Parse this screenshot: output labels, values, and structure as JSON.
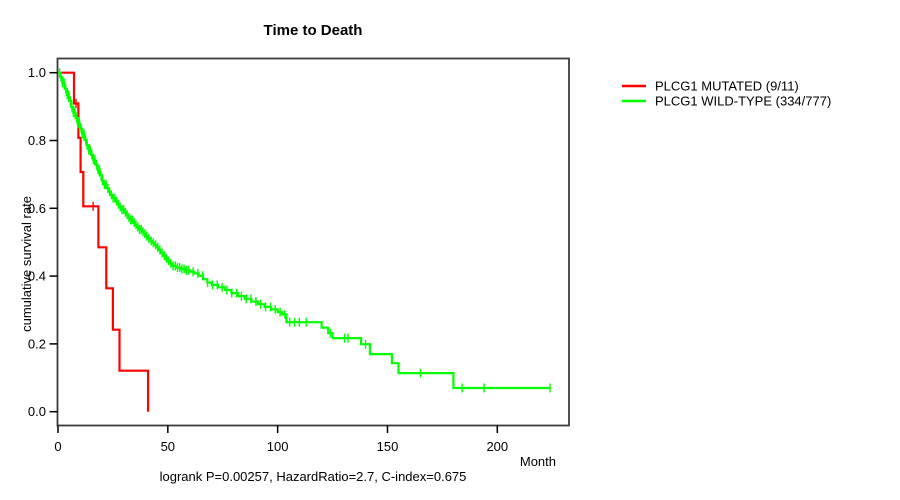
{
  "chart_data": {
    "type": "line",
    "variant": "kaplan-meier-step",
    "title": "Time to Death",
    "xlabel": "Month",
    "ylabel": "cumulative survival rate",
    "caption": "logrank P=0.00257, HazardRatio=2.7, C-index=0.675",
    "grid": false,
    "legend_position": "right-outside",
    "xlim": [
      0,
      232
    ],
    "ylim": [
      0.0,
      1.0
    ],
    "x_ticks": [
      0,
      50,
      100,
      150,
      200
    ],
    "x_tick_labels": [
      "0",
      "50",
      "100",
      "150",
      "200"
    ],
    "y_ticks": [
      1.0,
      0.8,
      0.6,
      0.4,
      0.2,
      0.0
    ],
    "y_tick_labels": [
      "1.0",
      "0.8",
      "0.6",
      "0.4",
      "0.2",
      "0.0"
    ],
    "axis_color": "#000000",
    "box_color": "#3c3c3c",
    "text_color": "#000000",
    "series": [
      {
        "name": "PLCG1 MUTATED (9/11)",
        "color": "#ff0000",
        "n_total": 11,
        "n_events": 9,
        "steps": [
          [
            0,
            1.0
          ],
          [
            7.3,
            0.909
          ],
          [
            9.3,
            0.808
          ],
          [
            10.3,
            0.707
          ],
          [
            11.5,
            0.606
          ],
          [
            18.4,
            0.485
          ],
          [
            22,
            0.364
          ],
          [
            25,
            0.242
          ],
          [
            28,
            0.121
          ],
          [
            41,
            0.0
          ]
        ],
        "censor_months": [
          8.2,
          16
        ]
      },
      {
        "name": "PLCG1 WILD-TYPE (334/777)",
        "color": "#00ff00",
        "n_total": 777,
        "n_events": 334,
        "steps": [
          [
            0,
            1.0
          ],
          [
            1,
            0.986
          ],
          [
            2,
            0.97
          ],
          [
            3,
            0.953
          ],
          [
            4,
            0.935
          ],
          [
            5,
            0.917
          ],
          [
            6,
            0.899
          ],
          [
            7,
            0.882
          ],
          [
            8,
            0.866
          ],
          [
            9,
            0.85
          ],
          [
            10,
            0.835
          ],
          [
            11,
            0.819
          ],
          [
            12,
            0.802
          ],
          [
            13,
            0.786
          ],
          [
            14,
            0.772
          ],
          [
            15,
            0.758
          ],
          [
            16,
            0.744
          ],
          [
            17,
            0.729
          ],
          [
            18,
            0.714
          ],
          [
            19,
            0.697
          ],
          [
            20,
            0.681
          ],
          [
            21,
            0.67
          ],
          [
            22,
            0.659
          ],
          [
            23,
            0.649
          ],
          [
            24,
            0.64
          ],
          [
            25,
            0.63
          ],
          [
            26,
            0.621
          ],
          [
            27,
            0.612
          ],
          [
            28,
            0.604
          ],
          [
            29,
            0.596
          ],
          [
            30,
            0.588
          ],
          [
            31,
            0.581
          ],
          [
            32,
            0.573
          ],
          [
            33,
            0.566
          ],
          [
            34,
            0.558
          ],
          [
            35,
            0.551
          ],
          [
            36,
            0.545
          ],
          [
            37,
            0.538
          ],
          [
            38,
            0.531
          ],
          [
            39,
            0.525
          ],
          [
            40,
            0.518
          ],
          [
            41,
            0.511
          ],
          [
            42,
            0.504
          ],
          [
            43,
            0.498
          ],
          [
            44,
            0.492
          ],
          [
            45,
            0.485
          ],
          [
            46,
            0.477
          ],
          [
            47,
            0.468
          ],
          [
            48,
            0.46
          ],
          [
            49,
            0.452
          ],
          [
            50,
            0.445
          ],
          [
            51,
            0.438
          ],
          [
            52,
            0.43
          ],
          [
            54,
            0.425
          ],
          [
            56,
            0.421
          ],
          [
            58,
            0.417
          ],
          [
            60,
            0.413
          ],
          [
            62,
            0.408
          ],
          [
            64,
            0.401
          ],
          [
            66,
            0.391
          ],
          [
            68,
            0.381
          ],
          [
            70,
            0.374
          ],
          [
            73,
            0.367
          ],
          [
            76,
            0.359
          ],
          [
            79,
            0.35
          ],
          [
            82,
            0.341
          ],
          [
            85,
            0.333
          ],
          [
            88,
            0.325
          ],
          [
            91,
            0.317
          ],
          [
            94,
            0.309
          ],
          [
            97,
            0.302
          ],
          [
            100,
            0.294
          ],
          [
            102,
            0.287
          ],
          [
            104,
            0.264
          ],
          [
            120,
            0.248
          ],
          [
            123,
            0.232
          ],
          [
            125,
            0.217
          ],
          [
            138,
            0.199
          ],
          [
            142,
            0.17
          ],
          [
            152,
            0.143
          ],
          [
            155,
            0.114
          ],
          [
            180,
            0.07
          ],
          [
            224,
            0.07
          ]
        ],
        "censor_months": [
          0.7,
          1.4,
          2.1,
          2.8,
          3.5,
          4.2,
          4.9,
          5.6,
          6.3,
          7.0,
          7.7,
          8.4,
          9.1,
          9.8,
          10.5,
          11.2,
          11.9,
          12.6,
          13.3,
          14.0,
          14.7,
          15.4,
          16.1,
          16.8,
          17.5,
          18.2,
          18.9,
          19.6,
          20.3,
          21.1,
          21.9,
          22.7,
          23.5,
          24.3,
          25.1,
          25.9,
          26.7,
          27.5,
          28.3,
          29.1,
          29.9,
          30.7,
          31.5,
          32.3,
          33.1,
          33.9,
          34.7,
          35.5,
          36.3,
          37.1,
          37.9,
          38.7,
          39.5,
          40.4,
          41.4,
          42.4,
          43.4,
          44.4,
          45.4,
          46.4,
          47.4,
          48.4,
          49.4,
          50.4,
          51.4,
          52.4,
          53.4,
          54.4,
          55.4,
          56.4,
          57.4,
          58.4,
          59.4,
          61.5,
          63.7,
          65.9,
          68.1,
          70.3,
          72.5,
          74.7,
          76.9,
          79.1,
          81.3,
          83.5,
          85.7,
          87.9,
          90.1,
          92.3,
          94.5,
          96.7,
          98.9,
          101.1,
          103.3,
          105.5,
          107.7,
          109.9,
          113,
          124,
          130.5,
          132,
          140,
          165,
          184,
          194,
          224
        ]
      }
    ]
  }
}
